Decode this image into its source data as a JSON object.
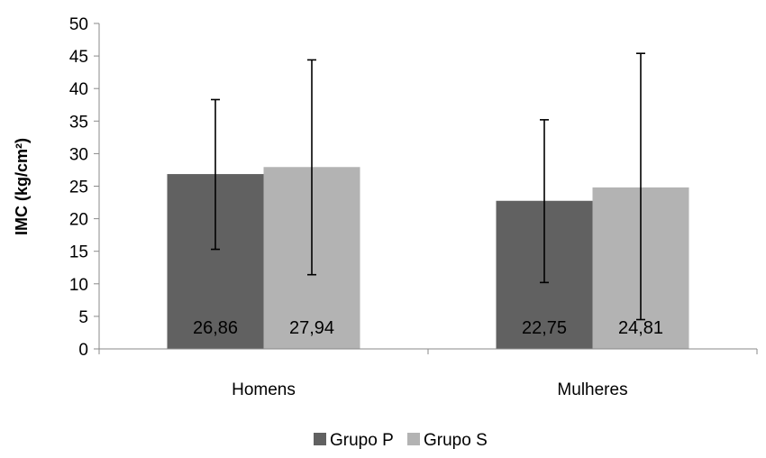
{
  "chart_data": {
    "type": "bar",
    "ylabel": "IMC (kg/cm²)",
    "ylim": [
      0,
      50
    ],
    "ytick_step": 5,
    "ytick_labels": [
      "0",
      "5",
      "10",
      "15",
      "20",
      "25",
      "30",
      "35",
      "40",
      "45",
      "50"
    ],
    "categories": [
      "Homens",
      "Mulheres"
    ],
    "series": [
      {
        "name": "Grupo P",
        "color": "#616161",
        "values": [
          26.86,
          22.75
        ],
        "labels": [
          "26,86",
          "22,75"
        ],
        "error_low": [
          15.3,
          10.2
        ],
        "error_high": [
          38.3,
          35.2
        ]
      },
      {
        "name": "Grupo S",
        "color": "#b3b3b3",
        "values": [
          27.94,
          24.81
        ],
        "labels": [
          "27,94",
          "24,81"
        ],
        "error_low": [
          11.4,
          4.5
        ],
        "error_high": [
          44.4,
          45.4
        ]
      }
    ],
    "grid": false,
    "legend_position": "bottom-center"
  }
}
